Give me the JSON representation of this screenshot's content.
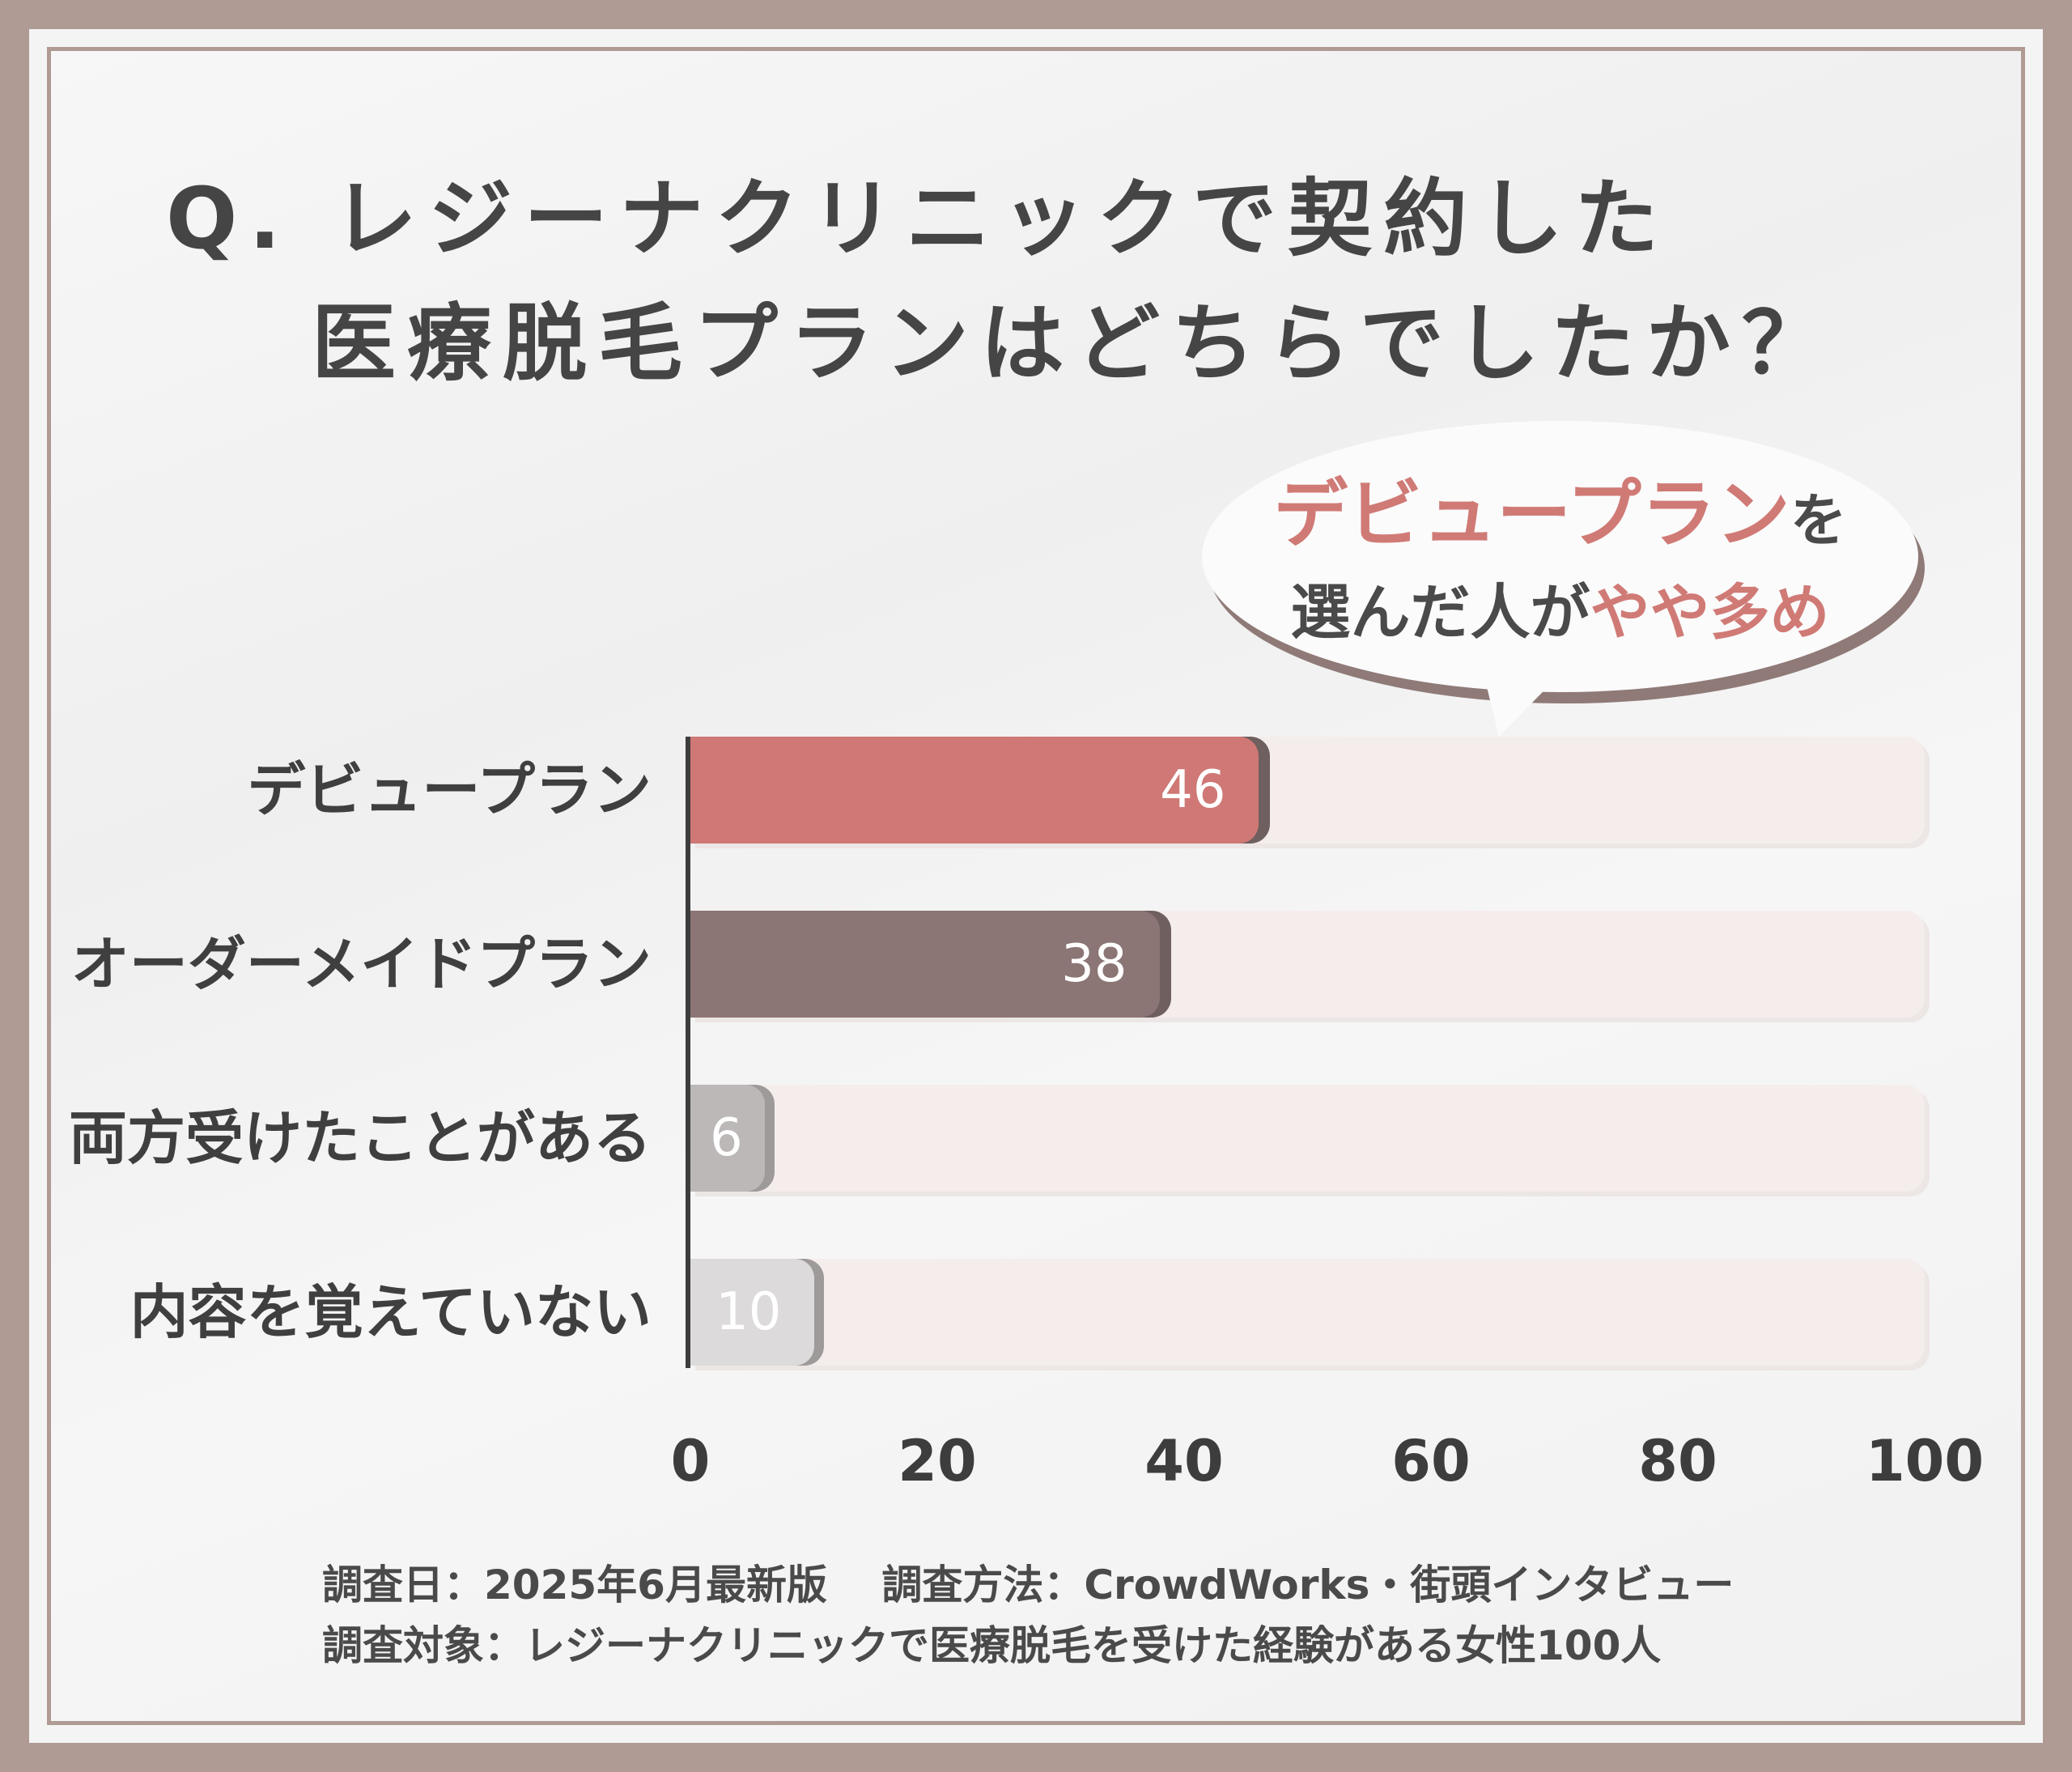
{
  "title": {
    "line1": "Q. レジーナクリニックで契約した",
    "line2": "医療脱毛プランはどちらでしたか？"
  },
  "callout": {
    "line1_accent": "デビュープラン",
    "line1_rest": "を",
    "line2_start": "選んだ人が",
    "line2_accent": "やや多め"
  },
  "colors": {
    "accent": "#d07a76",
    "bar_1": "#cf7875",
    "bar_2": "#8b7575",
    "bar_3": "#bdb8b8",
    "bar_4": "#dcdada",
    "track": "#f5edec",
    "frame": "#b09a94"
  },
  "chart_data": {
    "type": "bar",
    "orientation": "horizontal",
    "categories": [
      "デビュープラン",
      "オーダーメイドプラン",
      "両方受けたことがある",
      "内容を覚えていない"
    ],
    "values": [
      46,
      38,
      6,
      10
    ],
    "value_labels": [
      "46",
      "38",
      "6",
      "10"
    ],
    "xlim": [
      0,
      100
    ],
    "x_ticks": [
      "0",
      "20",
      "40",
      "60",
      "80",
      "100"
    ],
    "grid": false
  },
  "footer": {
    "line1": "調査日：2025年6月最新版　 調査方法：CrowdWorks・街頭インタビュー",
    "line2": "調査対象：レジーナクリニックで医療脱毛を受けた経験がある女性100人"
  }
}
